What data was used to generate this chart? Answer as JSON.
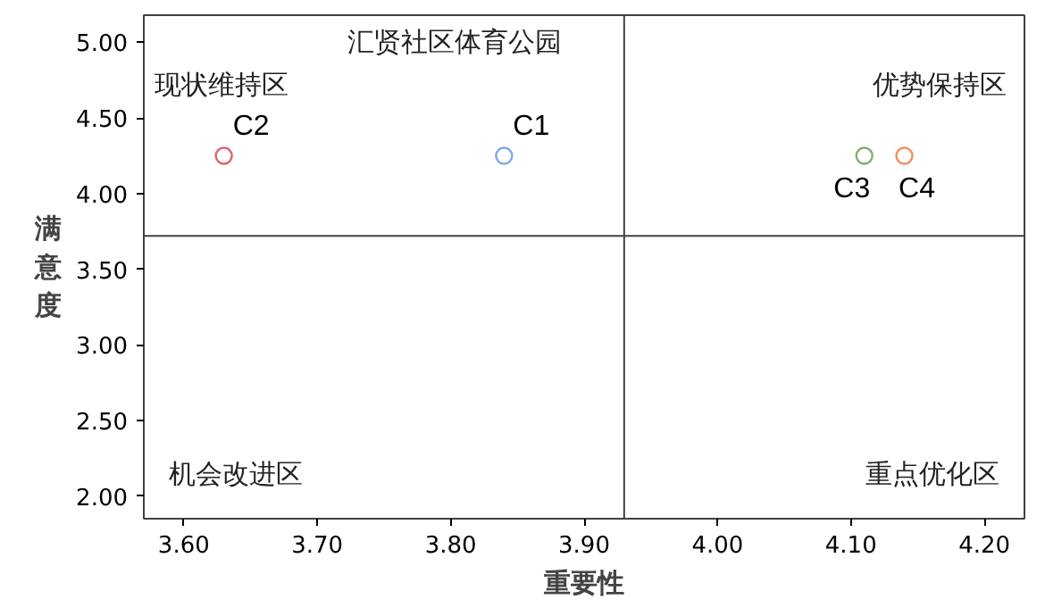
{
  "chart_data": {
    "type": "scatter",
    "title": "汇贤社区体育公园",
    "xlabel": "重要性",
    "ylabel": "满意度",
    "xlim": [
      3.57,
      4.23
    ],
    "ylim": [
      1.85,
      5.18
    ],
    "xticks": [
      {
        "value": 3.6,
        "label": "3.60"
      },
      {
        "value": 3.7,
        "label": "3.70"
      },
      {
        "value": 3.8,
        "label": "3.80"
      },
      {
        "value": 3.9,
        "label": "3.90"
      },
      {
        "value": 4.0,
        "label": "4.00"
      },
      {
        "value": 4.1,
        "label": "4.10"
      },
      {
        "value": 4.2,
        "label": "4.20"
      }
    ],
    "yticks": [
      {
        "value": 2.0,
        "label": "2.00"
      },
      {
        "value": 2.5,
        "label": "2.50"
      },
      {
        "value": 3.0,
        "label": "3.00"
      },
      {
        "value": 3.5,
        "label": "3.50"
      },
      {
        "value": 4.0,
        "label": "4.00"
      },
      {
        "value": 4.5,
        "label": "4.50"
      },
      {
        "value": 5.0,
        "label": "5.00"
      }
    ],
    "marker": "circle",
    "grid": false,
    "series": [
      {
        "name": "C1",
        "color": "#7fa8e8",
        "x": [
          3.84
        ],
        "values": [
          4.25
        ]
      },
      {
        "name": "C2",
        "color": "#e06070",
        "x": [
          3.63
        ],
        "values": [
          4.25
        ]
      },
      {
        "name": "C3",
        "color": "#80b070",
        "x": [
          4.11
        ],
        "values": [
          4.25
        ]
      },
      {
        "name": "C4",
        "color": "#f09060",
        "x": [
          4.14
        ],
        "values": [
          4.25
        ]
      }
    ],
    "ref_lines": [
      {
        "axis": "x",
        "value": 3.93,
        "color": "#404040"
      },
      {
        "axis": "y",
        "value": 3.72,
        "color": "#404040"
      }
    ],
    "annotations": [
      "现状维持区",
      "优势保持区",
      "机会改进区",
      "重点优化区"
    ]
  }
}
